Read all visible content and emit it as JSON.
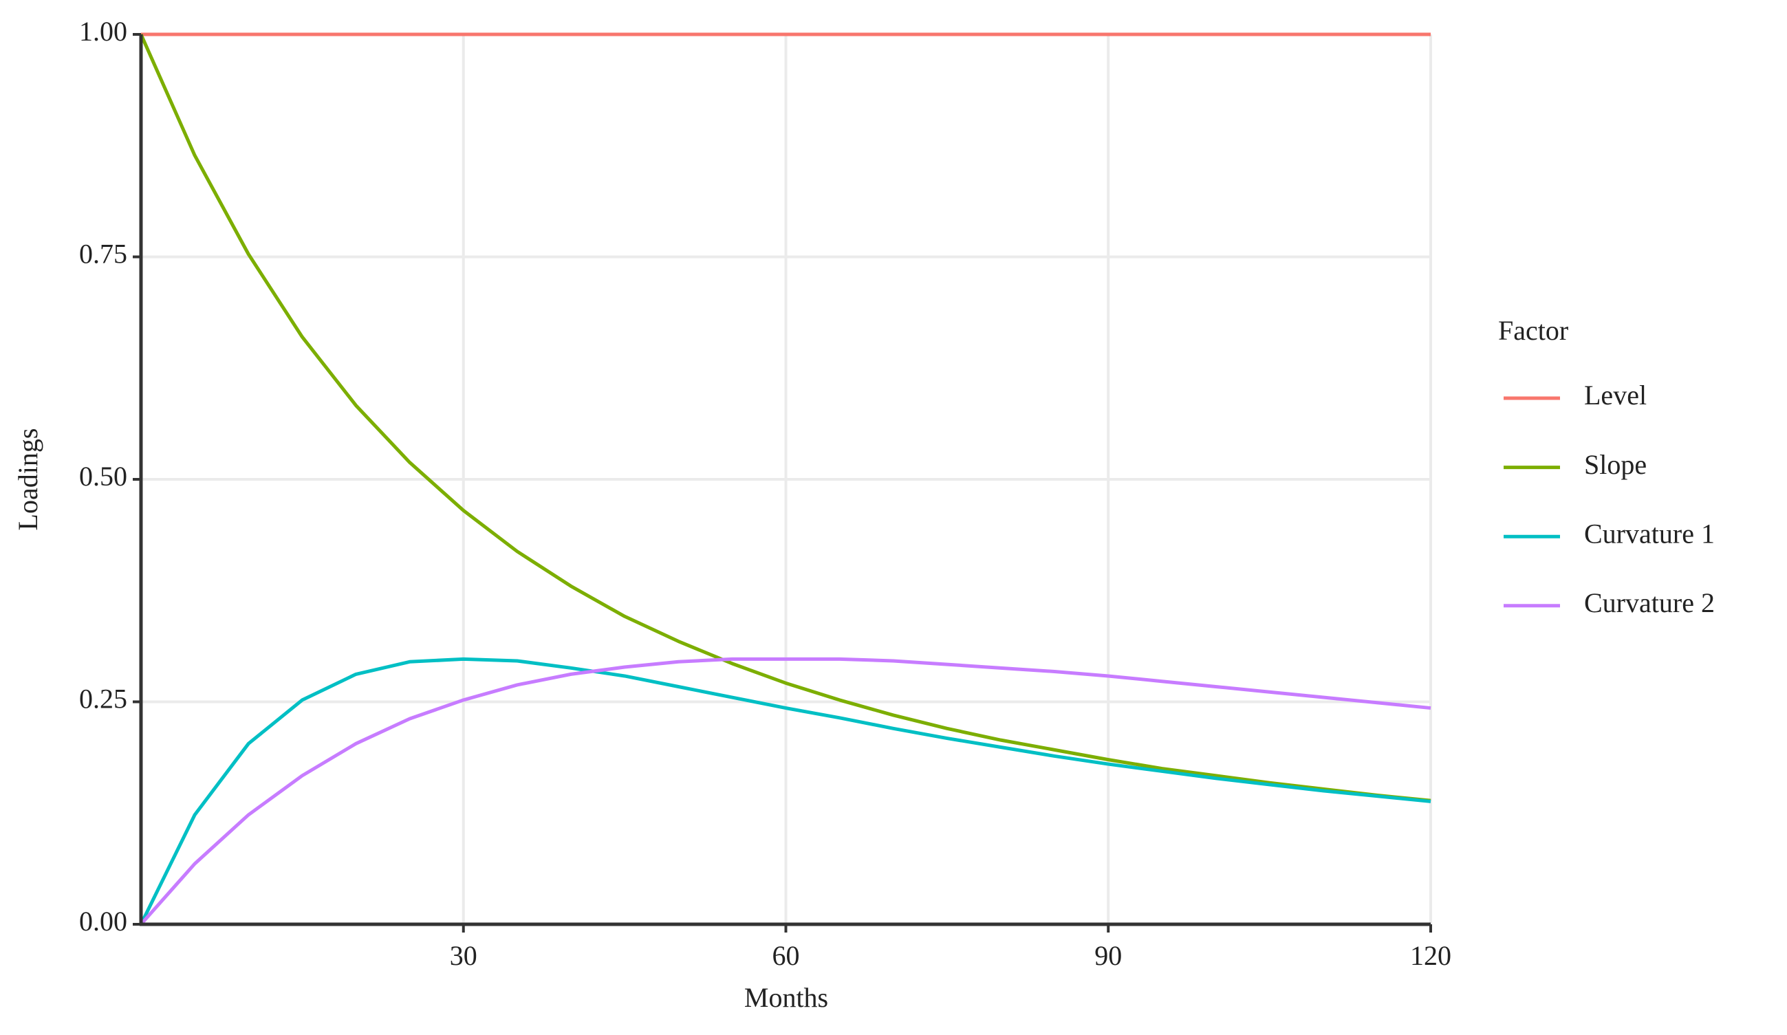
{
  "chart_data": {
    "type": "line",
    "x_label": "Months",
    "y_label": "Loadings",
    "legend_title": "Factor",
    "x": [
      0,
      5,
      10,
      15,
      20,
      25,
      30,
      35,
      40,
      45,
      50,
      55,
      60,
      65,
      70,
      75,
      80,
      85,
      90,
      95,
      100,
      105,
      110,
      115,
      120
    ],
    "series": [
      {
        "name": "Level",
        "color": "#f8766d",
        "values": [
          1,
          1,
          1,
          1,
          1,
          1,
          1,
          1,
          1,
          1,
          1,
          1,
          1,
          1,
          1,
          1,
          1,
          1,
          1,
          1,
          1,
          1,
          1,
          1,
          1
        ]
      },
      {
        "name": "Slope",
        "color": "#7cae00",
        "values": [
          1,
          0.864,
          0.753,
          0.66,
          0.583,
          0.519,
          0.465,
          0.419,
          0.38,
          0.346,
          0.318,
          0.293,
          0.271,
          0.252,
          0.235,
          0.22,
          0.207,
          0.196,
          0.185,
          0.175,
          0.167,
          0.159,
          0.152,
          0.145,
          0.139
        ]
      },
      {
        "name": "Curvature 1",
        "color": "#00bfc4",
        "values": [
          0,
          0.123,
          0.203,
          0.252,
          0.281,
          0.295,
          0.298,
          0.296,
          0.288,
          0.279,
          0.267,
          0.255,
          0.243,
          0.232,
          0.22,
          0.209,
          0.199,
          0.189,
          0.18,
          0.172,
          0.164,
          0.157,
          0.15,
          0.144,
          0.138
        ]
      },
      {
        "name": "Curvature 2",
        "color": "#c77cff",
        "values": [
          0,
          0.068,
          0.123,
          0.167,
          0.203,
          0.231,
          0.252,
          0.269,
          0.281,
          0.289,
          0.295,
          0.298,
          0.298,
          0.298,
          0.296,
          0.292,
          0.288,
          0.284,
          0.279,
          0.273,
          0.267,
          0.261,
          0.255,
          0.249,
          0.243
        ]
      }
    ],
    "xlim": [
      0,
      120
    ],
    "xticks": [
      30,
      60,
      90,
      120
    ],
    "ylim": [
      0,
      1
    ],
    "yticks": [
      {
        "value": 0,
        "label": "0.00"
      },
      {
        "value": 0.25,
        "label": "0.25"
      },
      {
        "value": 0.5,
        "label": "0.50"
      },
      {
        "value": 0.75,
        "label": "0.75"
      },
      {
        "value": 1,
        "label": "1.00"
      }
    ],
    "grid": true,
    "legend": "right"
  }
}
